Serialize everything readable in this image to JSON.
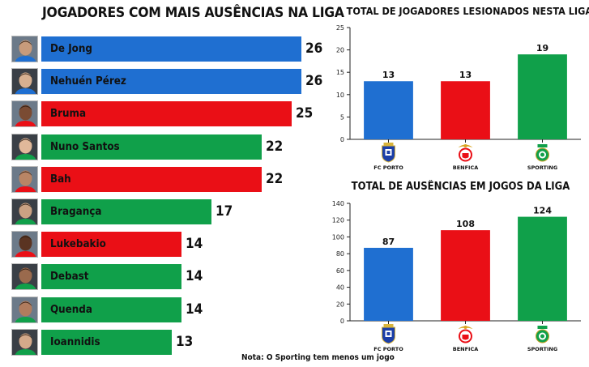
{
  "left_chart": {
    "title": "JOGADORES COM MAIS AUSÊNCIAS NA LIGA",
    "players": [
      {
        "name": "De Jong",
        "value": 26,
        "team": "porto"
      },
      {
        "name": "Nehuén Pérez",
        "value": 26,
        "team": "porto"
      },
      {
        "name": "Bruma",
        "value": 25,
        "team": "benfica"
      },
      {
        "name": "Nuno Santos",
        "value": 22,
        "team": "sporting"
      },
      {
        "name": "Bah",
        "value": 22,
        "team": "benfica"
      },
      {
        "name": "Bragança",
        "value": 17,
        "team": "sporting"
      },
      {
        "name": "Lukebakio",
        "value": 14,
        "team": "benfica"
      },
      {
        "name": "Debast",
        "value": 14,
        "team": "sporting"
      },
      {
        "name": "Quenda",
        "value": 14,
        "team": "sporting"
      },
      {
        "name": "Ioannidis",
        "value": 13,
        "team": "sporting"
      }
    ]
  },
  "chart_data": [
    {
      "type": "bar",
      "title": "JOGADORES COM MAIS AUSÊNCIAS NA LIGA",
      "orientation": "horizontal",
      "categories": [
        "De Jong",
        "Nehuén Pérez",
        "Bruma",
        "Nuno Santos",
        "Bah",
        "Bragança",
        "Lukebakio",
        "Debast",
        "Quenda",
        "Ioannidis"
      ],
      "values": [
        26,
        26,
        25,
        22,
        22,
        17,
        14,
        14,
        14,
        13
      ]
    },
    {
      "type": "bar",
      "title": "TOTAL DE JOGADORES LESIONADOS NESTA LIGA",
      "categories": [
        "FC PORTO",
        "BENFICA",
        "SPORTING"
      ],
      "values": [
        13,
        13,
        19
      ],
      "ylim": [
        0,
        25
      ],
      "yticks": [
        0,
        5,
        10,
        15,
        20,
        25
      ],
      "grid": false
    },
    {
      "type": "bar",
      "title": "TOTAL DE AUSÊNCIAS EM JOGOS DA LIGA",
      "categories": [
        "FC PORTO",
        "BENFICA",
        "SPORTING"
      ],
      "values": [
        87,
        108,
        124
      ],
      "ylim": [
        0,
        140
      ],
      "yticks": [
        0,
        20,
        40,
        60,
        80,
        100,
        120,
        140
      ],
      "grid": false
    }
  ],
  "colors": {
    "porto": "#1f6fd1",
    "benfica": "#ea0f16",
    "sporting": "#10a04a",
    "porto_dark": "#1c3fa8",
    "axis": "#222222"
  },
  "icons": {
    "porto": "fc-porto-crest-icon",
    "benfica": "benfica-crest-icon",
    "sporting": "sporting-crest-icon",
    "avatar": "player-photo-icon"
  },
  "note": "Nota: O Sporting tem menos um jogo"
}
